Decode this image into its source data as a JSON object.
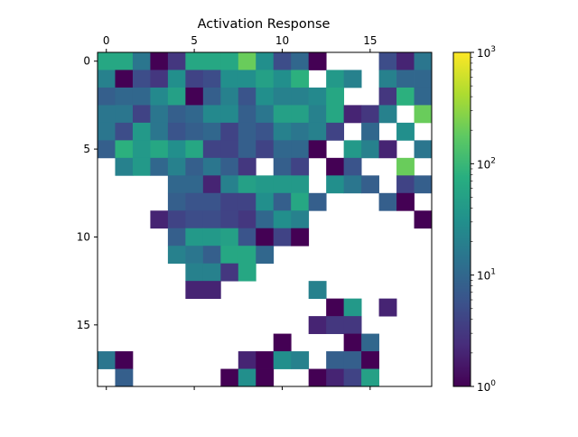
{
  "chart_data": {
    "type": "heatmap",
    "title": "Activation Response",
    "xlabel": "",
    "ylabel": "",
    "x_ticks": [
      "0",
      "5",
      "10",
      "15"
    ],
    "y_ticks": [
      "0",
      "5",
      "10",
      "15"
    ],
    "xlim": [
      -0.5,
      18.5
    ],
    "ylim": [
      18.5,
      -0.5
    ],
    "x_axis_position": "top",
    "colormap": "viridis",
    "color_scale": "log",
    "color_range": [
      1,
      1000
    ],
    "colorbar_ticks": [
      "10^0",
      "10^1",
      "10^2",
      "10^3"
    ],
    "grid": false,
    "values": [
      [
        60,
        60,
        15,
        1,
        3,
        60,
        60,
        60,
        200,
        30,
        5,
        10,
        1,
        null,
        null,
        null,
        5,
        2,
        15
      ],
      [
        20,
        1,
        5,
        3,
        30,
        4,
        5,
        30,
        30,
        50,
        30,
        80,
        null,
        40,
        20,
        null,
        20,
        10,
        10
      ],
      [
        8,
        10,
        10,
        25,
        50,
        1,
        8,
        20,
        6,
        30,
        20,
        20,
        25,
        60,
        null,
        null,
        3,
        80,
        10
      ],
      [
        15,
        15,
        4,
        15,
        8,
        10,
        25,
        25,
        8,
        15,
        50,
        50,
        20,
        60,
        2,
        3,
        20,
        null,
        200
      ],
      [
        15,
        5,
        40,
        15,
        6,
        8,
        10,
        4,
        8,
        6,
        20,
        15,
        20,
        4,
        null,
        10,
        null,
        30,
        null
      ],
      [
        8,
        80,
        40,
        60,
        30,
        60,
        4,
        4,
        8,
        4,
        10,
        10,
        1,
        null,
        40,
        20,
        2,
        null,
        15
      ],
      [
        null,
        20,
        40,
        10,
        20,
        8,
        15,
        8,
        3,
        null,
        8,
        4,
        null,
        1,
        6,
        null,
        null,
        200,
        null
      ],
      [
        null,
        null,
        null,
        null,
        10,
        10,
        2,
        20,
        50,
        40,
        40,
        40,
        null,
        30,
        15,
        8,
        null,
        4,
        8
      ],
      [
        null,
        null,
        null,
        null,
        8,
        6,
        6,
        4,
        4,
        30,
        8,
        60,
        8,
        null,
        null,
        null,
        8,
        1,
        null
      ],
      [
        null,
        null,
        null,
        2,
        4,
        5,
        5,
        4,
        3,
        10,
        30,
        20,
        null,
        null,
        null,
        null,
        null,
        null,
        1
      ],
      [
        null,
        null,
        null,
        null,
        8,
        40,
        40,
        50,
        6,
        1,
        4,
        1,
        null,
        null,
        null,
        null,
        null,
        null,
        null
      ],
      [
        null,
        null,
        null,
        null,
        20,
        15,
        8,
        60,
        60,
        10,
        null,
        null,
        null,
        null,
        null,
        null,
        null,
        null,
        null
      ],
      [
        null,
        null,
        null,
        null,
        null,
        20,
        20,
        3,
        60,
        null,
        null,
        null,
        null,
        null,
        null,
        null,
        null,
        null,
        null
      ],
      [
        null,
        null,
        null,
        null,
        null,
        2,
        2,
        null,
        null,
        null,
        null,
        null,
        20,
        null,
        null,
        null,
        null,
        null,
        null
      ],
      [
        null,
        null,
        null,
        null,
        null,
        null,
        null,
        null,
        null,
        null,
        null,
        null,
        null,
        1,
        40,
        null,
        2,
        null,
        null
      ],
      [
        null,
        null,
        null,
        null,
        null,
        null,
        null,
        null,
        null,
        null,
        null,
        null,
        2,
        3,
        3,
        null,
        null,
        null,
        null
      ],
      [
        null,
        null,
        null,
        null,
        null,
        null,
        null,
        null,
        null,
        null,
        1,
        null,
        null,
        null,
        1,
        10,
        null,
        null,
        null
      ],
      [
        15,
        1,
        null,
        null,
        null,
        null,
        null,
        null,
        2,
        1,
        30,
        20,
        null,
        8,
        8,
        1,
        null,
        null,
        null
      ],
      [
        null,
        8,
        null,
        null,
        null,
        null,
        null,
        1,
        30,
        1,
        null,
        null,
        1,
        2,
        4,
        50,
        null,
        null,
        null
      ]
    ]
  }
}
